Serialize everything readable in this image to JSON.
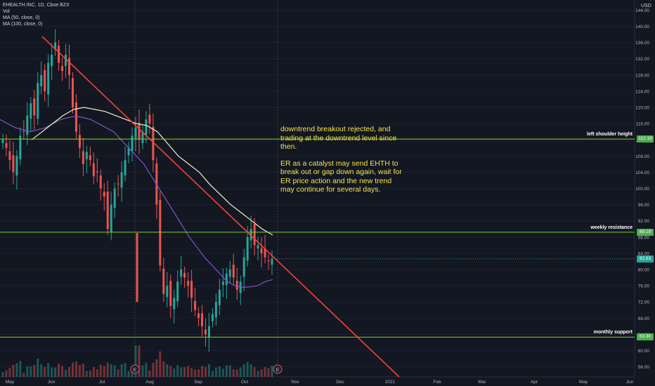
{
  "header": {
    "symbol_line": "EHEALTH INC, 1D, Cboe BZX",
    "vol_line": "Vol",
    "ma1_line": "MA (50, close, 0)",
    "ma2_line": "MA (100, close, 0)"
  },
  "currency": "USD",
  "note": {
    "para1": "downtrend breakout rejected, and trading at the downtrend level since then.",
    "para2": "ER as a catalyst may send EHTH to break out or gap down again, wait for ER price action and the new trend may continue for several days."
  },
  "levels": [
    {
      "label": "left shoulder height",
      "value": 112.19,
      "tag": "112.19"
    },
    {
      "label": "weekly resistance",
      "value": 89.19,
      "tag": "89.19"
    },
    {
      "label": "monthly support",
      "value": 63.3,
      "tag": "63.30"
    }
  ],
  "last_price_tag": "82.63",
  "earnings_marker": "E",
  "colors": {
    "background": "#131722",
    "up": "#26a69a",
    "down": "#ef5350",
    "level_line": "#7ed321",
    "trend_line": "#f44336",
    "ma50": "#7e57c2",
    "ma100": "#f5f0c8",
    "note_text": "#f7e34a",
    "last_price": "#26a69a"
  },
  "chart_data": {
    "type": "candlestick",
    "y_axis_ticks": [
      56,
      60,
      64,
      68,
      72,
      76,
      80,
      84,
      88,
      92,
      96,
      100,
      104,
      108,
      112,
      116,
      120,
      124,
      128,
      132,
      136,
      140,
      144
    ],
    "y_axis_tick_labels": [
      "56.00",
      "60.00",
      "64.00",
      "68.00",
      "72.00",
      "76.00",
      "80.00",
      "84.00",
      "88.00",
      "92.00",
      "96.00",
      "100.00",
      "104.00",
      "108.00",
      "112.00",
      "116.00",
      "120.00",
      "124.00",
      "128.00",
      "132.00",
      "136.00",
      "140.00",
      "144.00"
    ],
    "ylim": [
      53.5,
      146.5
    ],
    "x_axis_labels": [
      "May",
      "Jun",
      "Jul",
      "Aug",
      "Sep",
      "Oct",
      "Nov",
      "Dec",
      "2021",
      "Feb",
      "Mar",
      "Apr",
      "May",
      "Jun"
    ],
    "close_series": [
      112,
      110,
      107,
      104,
      108,
      113,
      114,
      118,
      121,
      118,
      126,
      128,
      124,
      131,
      133,
      136,
      131,
      129,
      133,
      128,
      120,
      114,
      110,
      106,
      109,
      107,
      103,
      104,
      100,
      98,
      90,
      96,
      100,
      101,
      104,
      107,
      110,
      113,
      115,
      112,
      114,
      117,
      116,
      107,
      96,
      81,
      74,
      76,
      71,
      73,
      77,
      80,
      78,
      76,
      73,
      70,
      68,
      66,
      64,
      66,
      69,
      72,
      75,
      77,
      79,
      80,
      78,
      75,
      77,
      83,
      88,
      90,
      86,
      86,
      84,
      83,
      82,
      82.6
    ],
    "ma50": [
      117,
      116,
      115,
      114.5,
      114,
      114.5,
      115,
      116,
      117,
      117.5,
      117.8,
      117.5,
      117,
      116,
      115,
      114,
      112,
      110,
      108,
      106,
      103,
      100,
      97,
      94,
      91,
      88,
      85.5,
      83,
      81,
      79,
      77,
      76,
      75.6,
      75.7,
      76,
      77,
      77.5
    ],
    "ma100": [
      112,
      114,
      116,
      118,
      119.5,
      120,
      119.5,
      119,
      118,
      117,
      116,
      115.5,
      114,
      111,
      108,
      106,
      104,
      101,
      98.5,
      96,
      94,
      92,
      90,
      88.5
    ],
    "trendline": {
      "start_price": 137.5,
      "end_price": 53.5
    },
    "earnings_markers": 2
  }
}
